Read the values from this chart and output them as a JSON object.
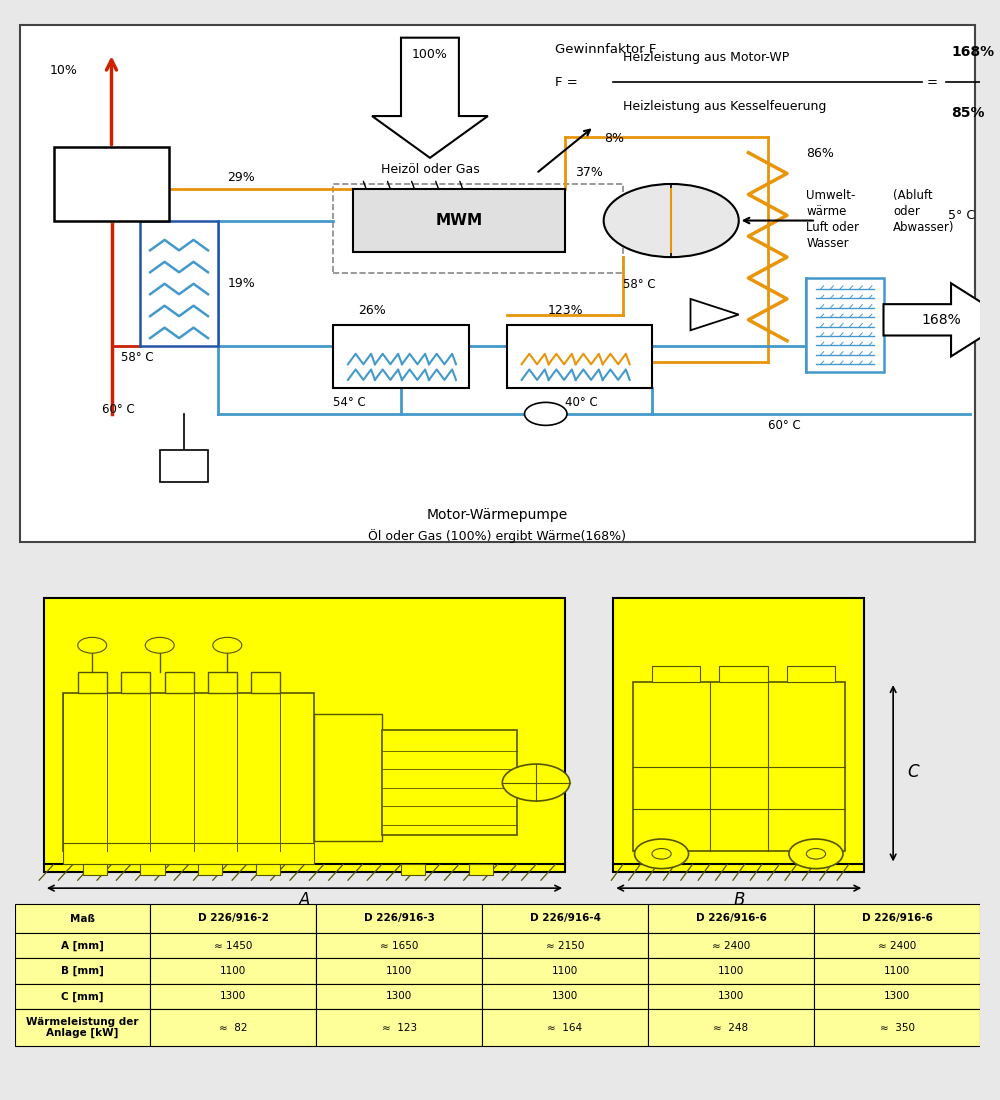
{
  "top_bg": "#ffffff",
  "bottom_bg": "#ffff00",
  "orange": "#e8950a",
  "blue": "#4499cc",
  "red": "#cc2200",
  "yellow_bg": "#ffff00",
  "gewinnfaktor_title": "Gewinnfaktor F",
  "formula_line1": "Heizleistung aus Motor-WP",
  "formula_line2": "Heizleistung aus Kesselfeuerung",
  "label_heizoel": "Heizöl oder Gas",
  "label_mwm": "MWM",
  "label_umwelt": "Umwelt-\nwärme\nLuft oder\nWasser",
  "label_abluft": "(Abluft\noder\nAbwasser)",
  "label_motor_wp": "Motor-Wärmepumpe",
  "label_bottom": "Öl oder Gas (100%) ergibt Wärme(168%)",
  "table_header": [
    "Maß",
    "D 226/916-2",
    "D 226/916-3",
    "D 226/916-4",
    "D 226/916-6",
    "D 226/916-6"
  ],
  "table_row1_label": "A [mm]",
  "table_row1": [
    "≈ 1450",
    "≈ 1650",
    "≈ 2150",
    "≈ 2400",
    "≈ 2400"
  ],
  "table_row2_label": "B [mm]",
  "table_row2": [
    "1100",
    "1100",
    "1100",
    "1100",
    "1100"
  ],
  "table_row3_label": "C [mm]",
  "table_row3": [
    "1300",
    "1300",
    "1300",
    "1300",
    "1300"
  ],
  "table_row4_label": "Wärmeleistung der\nAnlage [kW]",
  "table_row4": [
    "≈  82",
    "≈  123",
    "≈  164",
    "≈  248",
    "≈  350"
  ],
  "dim_A": "A",
  "dim_B": "B",
  "dim_C": "C"
}
